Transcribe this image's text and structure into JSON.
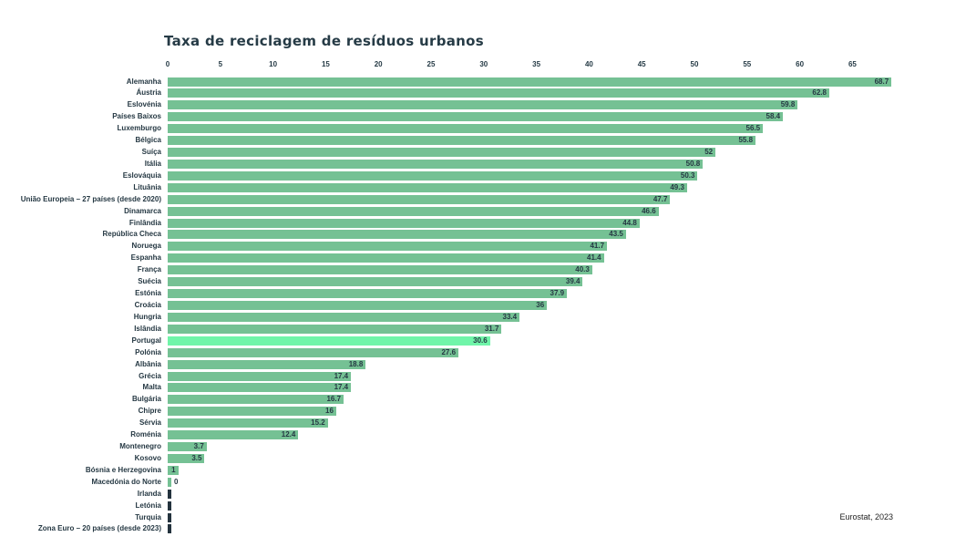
{
  "title": "Taxa de reciclagem de resíduos urbanos",
  "source": "Eurostat, 2023",
  "colors": {
    "bar": "#75c194",
    "highlight": "#70f5a9",
    "no_data": "#24333e",
    "text": "#253843"
  },
  "chart_data": {
    "type": "bar",
    "orientation": "horizontal",
    "title": "Taxa de reciclagem de resíduos urbanos",
    "xlabel": "",
    "ylabel": "",
    "xlim": [
      0,
      68.7
    ],
    "x_ticks": [
      0,
      5,
      10,
      15,
      20,
      25,
      30,
      35,
      40,
      45,
      50,
      55,
      60,
      65
    ],
    "grid": false,
    "legend": "none",
    "highlight_index": 22,
    "highlight_category": "Portugal",
    "no_data_categories": [
      "Irlanda",
      "Letónia",
      "Turquia",
      "Zona Euro – 20 países (desde 2023)"
    ],
    "categories": [
      "Alemanha",
      "Áustria",
      "Eslovénia",
      "Países Baixos",
      "Luxemburgo",
      "Bélgica",
      "Suíça",
      "Itália",
      "Eslováquia",
      "Lituânia",
      "União Europeia – 27 países (desde 2020)",
      "Dinamarca",
      "Finlândia",
      "República Checa",
      "Noruega",
      "Espanha",
      "França",
      "Suécia",
      "Estónia",
      "Croácia",
      "Hungria",
      "Islândia",
      "Portugal",
      "Polónia",
      "Albânia",
      "Grécia",
      "Malta",
      "Bulgária",
      "Chipre",
      "Sérvia",
      "Roménia",
      "Montenegro",
      "Kosovo",
      "Bósnia e Herzegovina",
      "Macedónia do Norte",
      "Irlanda",
      "Letónia",
      "Turquia",
      "Zona Euro – 20 países (desde 2023)"
    ],
    "values": [
      68.7,
      62.8,
      59.8,
      58.4,
      56.5,
      55.8,
      52,
      50.8,
      50.3,
      49.3,
      47.7,
      46.6,
      44.8,
      43.5,
      41.7,
      41.4,
      40.3,
      39.4,
      37.9,
      36,
      33.4,
      31.7,
      30.6,
      27.6,
      18.8,
      17.4,
      17.4,
      16.7,
      16,
      15.2,
      12.4,
      3.7,
      3.5,
      1,
      0,
      null,
      null,
      null,
      null
    ],
    "display_values": [
      "68.7",
      "62.8",
      "59.8",
      "58.4",
      "56.5",
      "55.8",
      "52",
      "50.8",
      "50.3",
      "49.3",
      "47.7",
      "46.6",
      "44.8",
      "43.5",
      "41.7",
      "41.4",
      "40.3",
      "39.4",
      "37.9",
      "36",
      "33.4",
      "31.7",
      "30.6",
      "27.6",
      "18.8",
      "17.4",
      "17.4",
      "16.7",
      "16",
      "15.2",
      "12.4",
      "3.7",
      "3.5",
      "1",
      "0",
      null,
      null,
      null,
      null
    ]
  }
}
